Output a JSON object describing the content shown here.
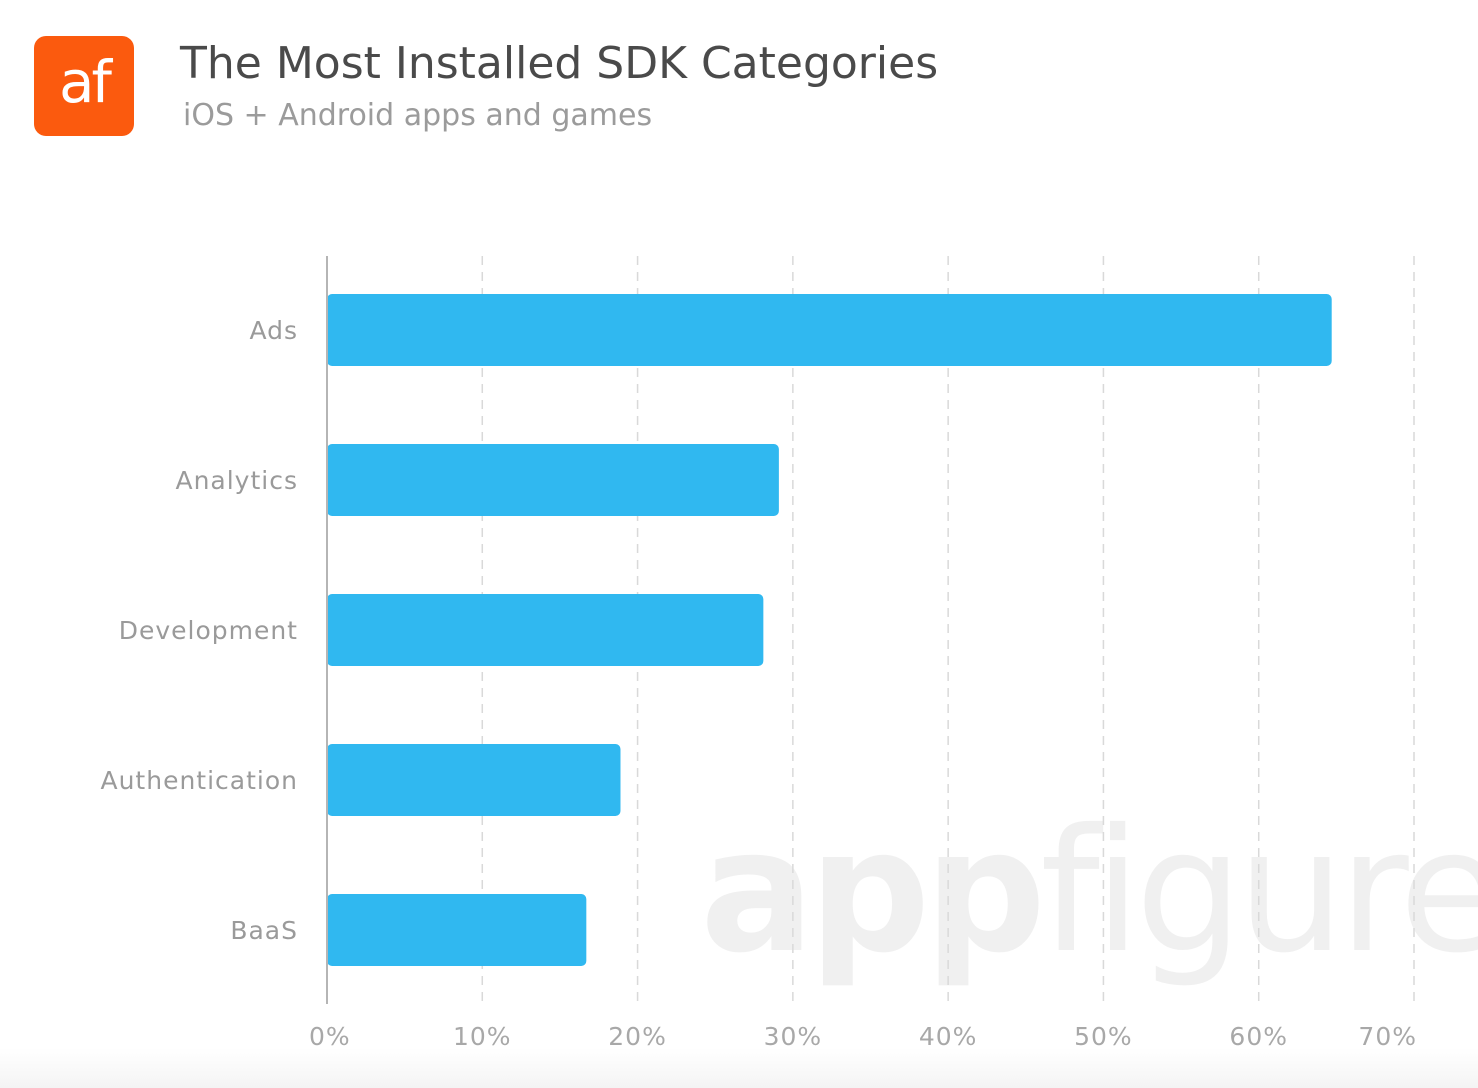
{
  "header": {
    "logo_text": "af",
    "logo_color": "#fb5a0e",
    "title": "The Most Installed SDK Categories",
    "subtitle": "iOS + Android apps and games"
  },
  "watermark": {
    "bold_part": "app",
    "light_part": "figures"
  },
  "colors": {
    "bar": "#30b8f0",
    "gridline": "#d9d9d9",
    "axis": "#b5b5b5"
  },
  "chart_data": {
    "type": "bar",
    "orientation": "horizontal",
    "title": "The Most Installed SDK Categories",
    "subtitle": "iOS + Android apps and games",
    "categories": [
      "Ads",
      "Analytics",
      "Development",
      "Authentication",
      "BaaS"
    ],
    "values": [
      64.7,
      29.1,
      28.1,
      18.9,
      16.7
    ],
    "unit": "%",
    "xlim": [
      0,
      70
    ],
    "xticks": [
      0,
      10,
      20,
      30,
      40,
      50,
      60,
      70
    ],
    "xtick_labels": [
      "0%",
      "10%",
      "20%",
      "30%",
      "40%",
      "50%",
      "60%",
      "70%"
    ],
    "grid": "vertical dashed",
    "legend": "none"
  }
}
